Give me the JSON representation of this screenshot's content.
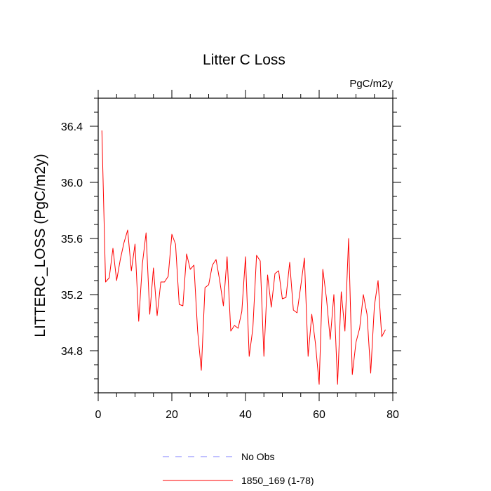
{
  "chart_data": {
    "type": "line",
    "title": "Litter C Loss",
    "units": "PgC/m2y",
    "xlabel": "",
    "ylabel": "LITTERC_LOSS  (PgC/m2y)",
    "xlim": [
      0,
      80
    ],
    "ylim": [
      34.5,
      36.6
    ],
    "xticks": [
      0,
      20,
      40,
      60,
      80
    ],
    "xtick_labels": [
      "0",
      "20",
      "40",
      "60",
      "80"
    ],
    "yticks": [
      34.8,
      35.2,
      35.6,
      36.0,
      36.4
    ],
    "ytick_labels": [
      "34.8",
      "35.2",
      "35.6",
      "36.0",
      "36.4"
    ],
    "grid": false,
    "legend_position": "bottom",
    "series": [
      {
        "name": "No Obs",
        "color": "#8080ff",
        "dash": "dashed",
        "x": [],
        "values": []
      },
      {
        "name": "1850_169 (1-78)",
        "color": "#ff0000",
        "dash": "solid",
        "x": [
          1,
          2,
          3,
          4,
          5,
          6,
          7,
          8,
          9,
          10,
          11,
          12,
          13,
          14,
          15,
          16,
          17,
          18,
          19,
          20,
          21,
          22,
          23,
          24,
          25,
          26,
          27,
          28,
          29,
          30,
          31,
          32,
          33,
          34,
          35,
          36,
          37,
          38,
          39,
          40,
          41,
          42,
          43,
          44,
          45,
          46,
          47,
          48,
          49,
          50,
          51,
          52,
          53,
          54,
          55,
          56,
          57,
          58,
          59,
          60,
          61,
          62,
          63,
          64,
          65,
          66,
          67,
          68,
          69,
          70,
          71,
          72,
          73,
          74,
          75,
          76,
          77,
          78
        ],
        "values": [
          36.37,
          35.29,
          35.32,
          35.53,
          35.3,
          35.45,
          35.57,
          35.66,
          35.37,
          35.56,
          35.01,
          35.42,
          35.64,
          35.06,
          35.39,
          35.05,
          35.29,
          35.29,
          35.33,
          35.63,
          35.56,
          35.13,
          35.12,
          35.49,
          35.38,
          35.41,
          34.94,
          34.66,
          35.25,
          35.27,
          35.41,
          35.45,
          35.3,
          35.12,
          35.47,
          34.94,
          34.98,
          34.96,
          35.08,
          35.47,
          34.76,
          34.96,
          35.48,
          35.44,
          34.76,
          35.34,
          35.11,
          35.35,
          35.37,
          35.17,
          35.18,
          35.43,
          35.09,
          35.07,
          35.26,
          35.46,
          34.76,
          35.06,
          34.85,
          34.56,
          35.38,
          35.17,
          34.88,
          35.2,
          34.56,
          35.22,
          34.94,
          35.6,
          34.63,
          34.86,
          34.96,
          35.2,
          35.06,
          34.64,
          35.12,
          35.3,
          34.9,
          34.95
        ]
      }
    ]
  }
}
